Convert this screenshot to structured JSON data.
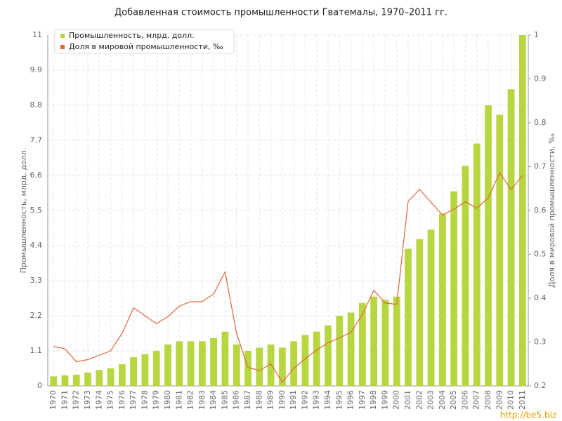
{
  "chart_data": {
    "type": "bar_line",
    "title": "Добавленная стоимость промышленности Гватемалы, 1970–2011 гг.",
    "ylabel": "Промышленность, млрд. долл.",
    "y2label": "Доля в мировой промышленности, ‰",
    "watermark": "http://be5.biz",
    "legend": "upper-left",
    "grid": true,
    "categories": [
      "1970",
      "1971",
      "1972",
      "1973",
      "1974",
      "1975",
      "1976",
      "1977",
      "1978",
      "1979",
      "1980",
      "1981",
      "1982",
      "1983",
      "1984",
      "1985",
      "1986",
      "1987",
      "1988",
      "1989",
      "1990",
      "1991",
      "1992",
      "1993",
      "1994",
      "1995",
      "1996",
      "1997",
      "1998",
      "1999",
      "2000",
      "2001",
      "2002",
      "2003",
      "2004",
      "2005",
      "2006",
      "2007",
      "2008",
      "2009",
      "2010",
      "2011"
    ],
    "series": [
      {
        "name": "Промышленность, млрд. долл.",
        "type": "bar",
        "color": "#b8d640",
        "values": [
          0.3,
          0.33,
          0.35,
          0.42,
          0.5,
          0.55,
          0.68,
          0.9,
          1.0,
          1.1,
          1.3,
          1.4,
          1.4,
          1.4,
          1.5,
          1.7,
          1.3,
          1.1,
          1.2,
          1.3,
          1.2,
          1.4,
          1.6,
          1.7,
          1.9,
          2.2,
          2.3,
          2.6,
          2.8,
          2.7,
          2.8,
          4.3,
          4.6,
          4.9,
          5.4,
          6.1,
          6.9,
          7.6,
          8.8,
          8.5,
          9.3,
          11.0
        ]
      },
      {
        "name": "Доля в мировой промышленности, ‰",
        "type": "line",
        "axis": "y2",
        "color": "#e0673a",
        "values": [
          0.29,
          0.285,
          0.255,
          0.26,
          0.27,
          0.28,
          0.32,
          0.378,
          0.36,
          0.342,
          0.358,
          0.382,
          0.392,
          0.392,
          0.41,
          0.46,
          0.32,
          0.242,
          0.235,
          0.25,
          0.208,
          0.24,
          0.262,
          0.282,
          0.298,
          0.31,
          0.322,
          0.363,
          0.418,
          0.389,
          0.386,
          0.621,
          0.648,
          0.619,
          0.59,
          0.603,
          0.62,
          0.605,
          0.629,
          0.686,
          0.648,
          0.68
        ]
      }
    ],
    "ylim": [
      0,
      11
    ],
    "yticks": [
      0,
      1.1,
      2.2,
      3.3,
      4.4,
      5.5,
      6.6,
      7.7,
      8.8,
      9.9,
      11
    ],
    "y2lim": [
      0.2,
      1
    ],
    "y2ticks": [
      0.2,
      0.3,
      0.4,
      0.5,
      0.6,
      0.7,
      0.8,
      0.9,
      1
    ]
  }
}
